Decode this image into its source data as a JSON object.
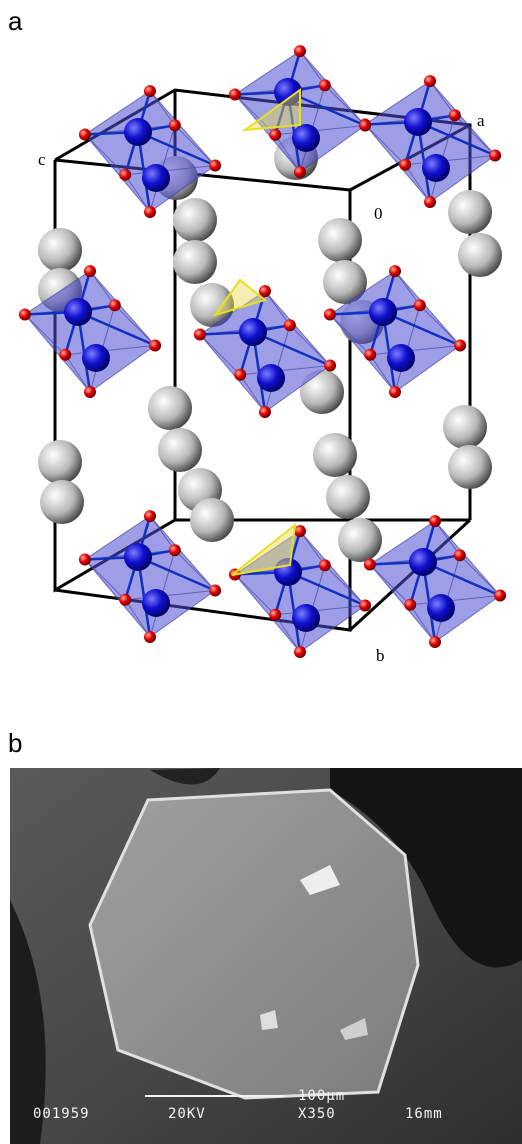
{
  "panels": [
    {
      "label": "a",
      "axis_labels": {
        "c": "c",
        "a": "a",
        "origin": "0",
        "b": "b"
      }
    },
    {
      "label": "b",
      "scale_bar": "100µm",
      "info": [
        "001959",
        "20KV",
        "X350",
        "16mm"
      ]
    }
  ]
}
